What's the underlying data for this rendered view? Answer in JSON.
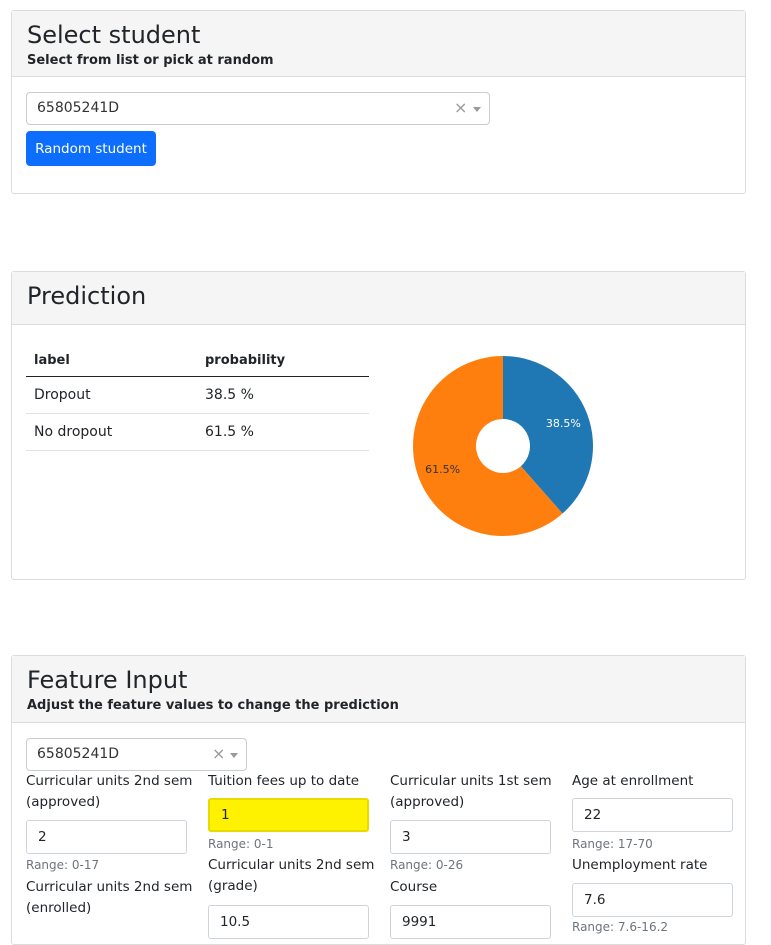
{
  "select_student": {
    "title": "Select student",
    "subtitle": "Select from list or pick at random",
    "dropdown_value": "65805241D",
    "random_button": "Random student"
  },
  "prediction": {
    "title": "Prediction",
    "table": {
      "headers": [
        "label",
        "probability"
      ],
      "rows": [
        {
          "label": "Dropout",
          "probability": "38.5 %"
        },
        {
          "label": "No dropout",
          "probability": "61.5 %"
        }
      ]
    },
    "chart_data": {
      "type": "pie",
      "donut": true,
      "slices": [
        {
          "name": "Dropout",
          "value": 38.5,
          "label": "38.5%",
          "color": "#1f77b4"
        },
        {
          "name": "No dropout",
          "value": 61.5,
          "label": "61.5%",
          "color": "#ff7f0e"
        }
      ]
    }
  },
  "feature_input": {
    "title": "Feature Input",
    "subtitle": "Adjust the feature values to change the prediction",
    "dropdown_value": "65805241D",
    "fields": {
      "cu2_approved": {
        "label": "Curricular units 2nd sem (approved)",
        "value": "2",
        "range": "Range: 0-17"
      },
      "tuition": {
        "label": "Tuition fees up to date",
        "value": "1",
        "range": "Range: 0-1"
      },
      "cu1_approved": {
        "label": "Curricular units 1st sem (approved)",
        "value": "3",
        "range": "Range: 0-26"
      },
      "age": {
        "label": "Age at enrollment",
        "value": "22",
        "range": "Range: 17-70"
      },
      "cu2_grade": {
        "label": "Curricular units 2nd sem (grade)",
        "value": "10.5"
      },
      "course": {
        "label": "Course",
        "value": "9991"
      },
      "unemployment": {
        "label": "Unemployment rate",
        "value": "7.6",
        "range": "Range: 7.6-16.2"
      },
      "cu2_enrolled": {
        "label": "Curricular units 2nd sem (enrolled)"
      }
    }
  }
}
